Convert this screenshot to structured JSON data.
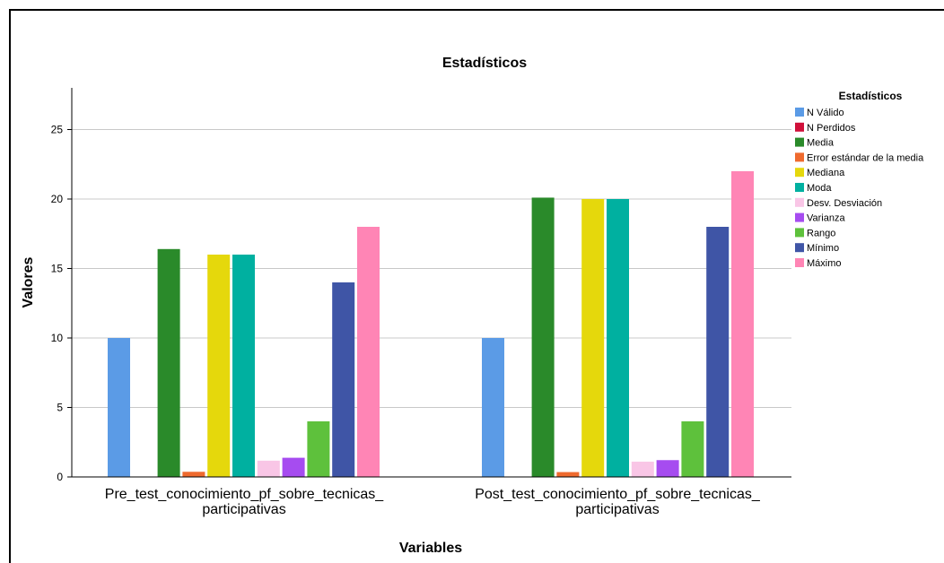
{
  "chart_data": {
    "type": "bar",
    "title": "Estadísticos",
    "xlabel": "Variables",
    "ylabel": "Valores",
    "ylim": [
      0,
      28
    ],
    "yticks": [
      0,
      5,
      10,
      15,
      20,
      25
    ],
    "grid": true,
    "legend_position": "right",
    "legend_title": "Estadísticos",
    "categories": [
      [
        "Pre_test_conocimiento_pf_sobre_tecnicas_",
        "participativas"
      ],
      [
        "Post_test_conocimiento_pf_sobre_tecnicas_",
        "participativas"
      ]
    ],
    "series": [
      {
        "name": "N Válido",
        "color": "#5b9be6",
        "values": [
          10,
          10
        ]
      },
      {
        "name": "N Perdidos",
        "color": "#d0103a",
        "values": [
          0,
          0
        ]
      },
      {
        "name": "Media",
        "color": "#2a8a2a",
        "values": [
          16.4,
          20.1
        ]
      },
      {
        "name": "Error estándar de la media",
        "color": "#ef6a2e",
        "values": [
          0.37,
          0.35
        ]
      },
      {
        "name": "Mediana",
        "color": "#e5d80c",
        "values": [
          16,
          20
        ]
      },
      {
        "name": "Moda",
        "color": "#00b0a0",
        "values": [
          16,
          20
        ]
      },
      {
        "name": "Desv. Desviación",
        "color": "#f9c6e6",
        "values": [
          1.17,
          1.1
        ]
      },
      {
        "name": "Varianza",
        "color": "#a64cf0",
        "values": [
          1.38,
          1.21
        ]
      },
      {
        "name": "Rango",
        "color": "#5ec13c",
        "values": [
          4,
          4
        ]
      },
      {
        "name": "Mínimo",
        "color": "#3f55a6",
        "values": [
          14,
          18
        ]
      },
      {
        "name": "Máximo",
        "color": "#ff85b5",
        "values": [
          18,
          22
        ]
      }
    ]
  }
}
